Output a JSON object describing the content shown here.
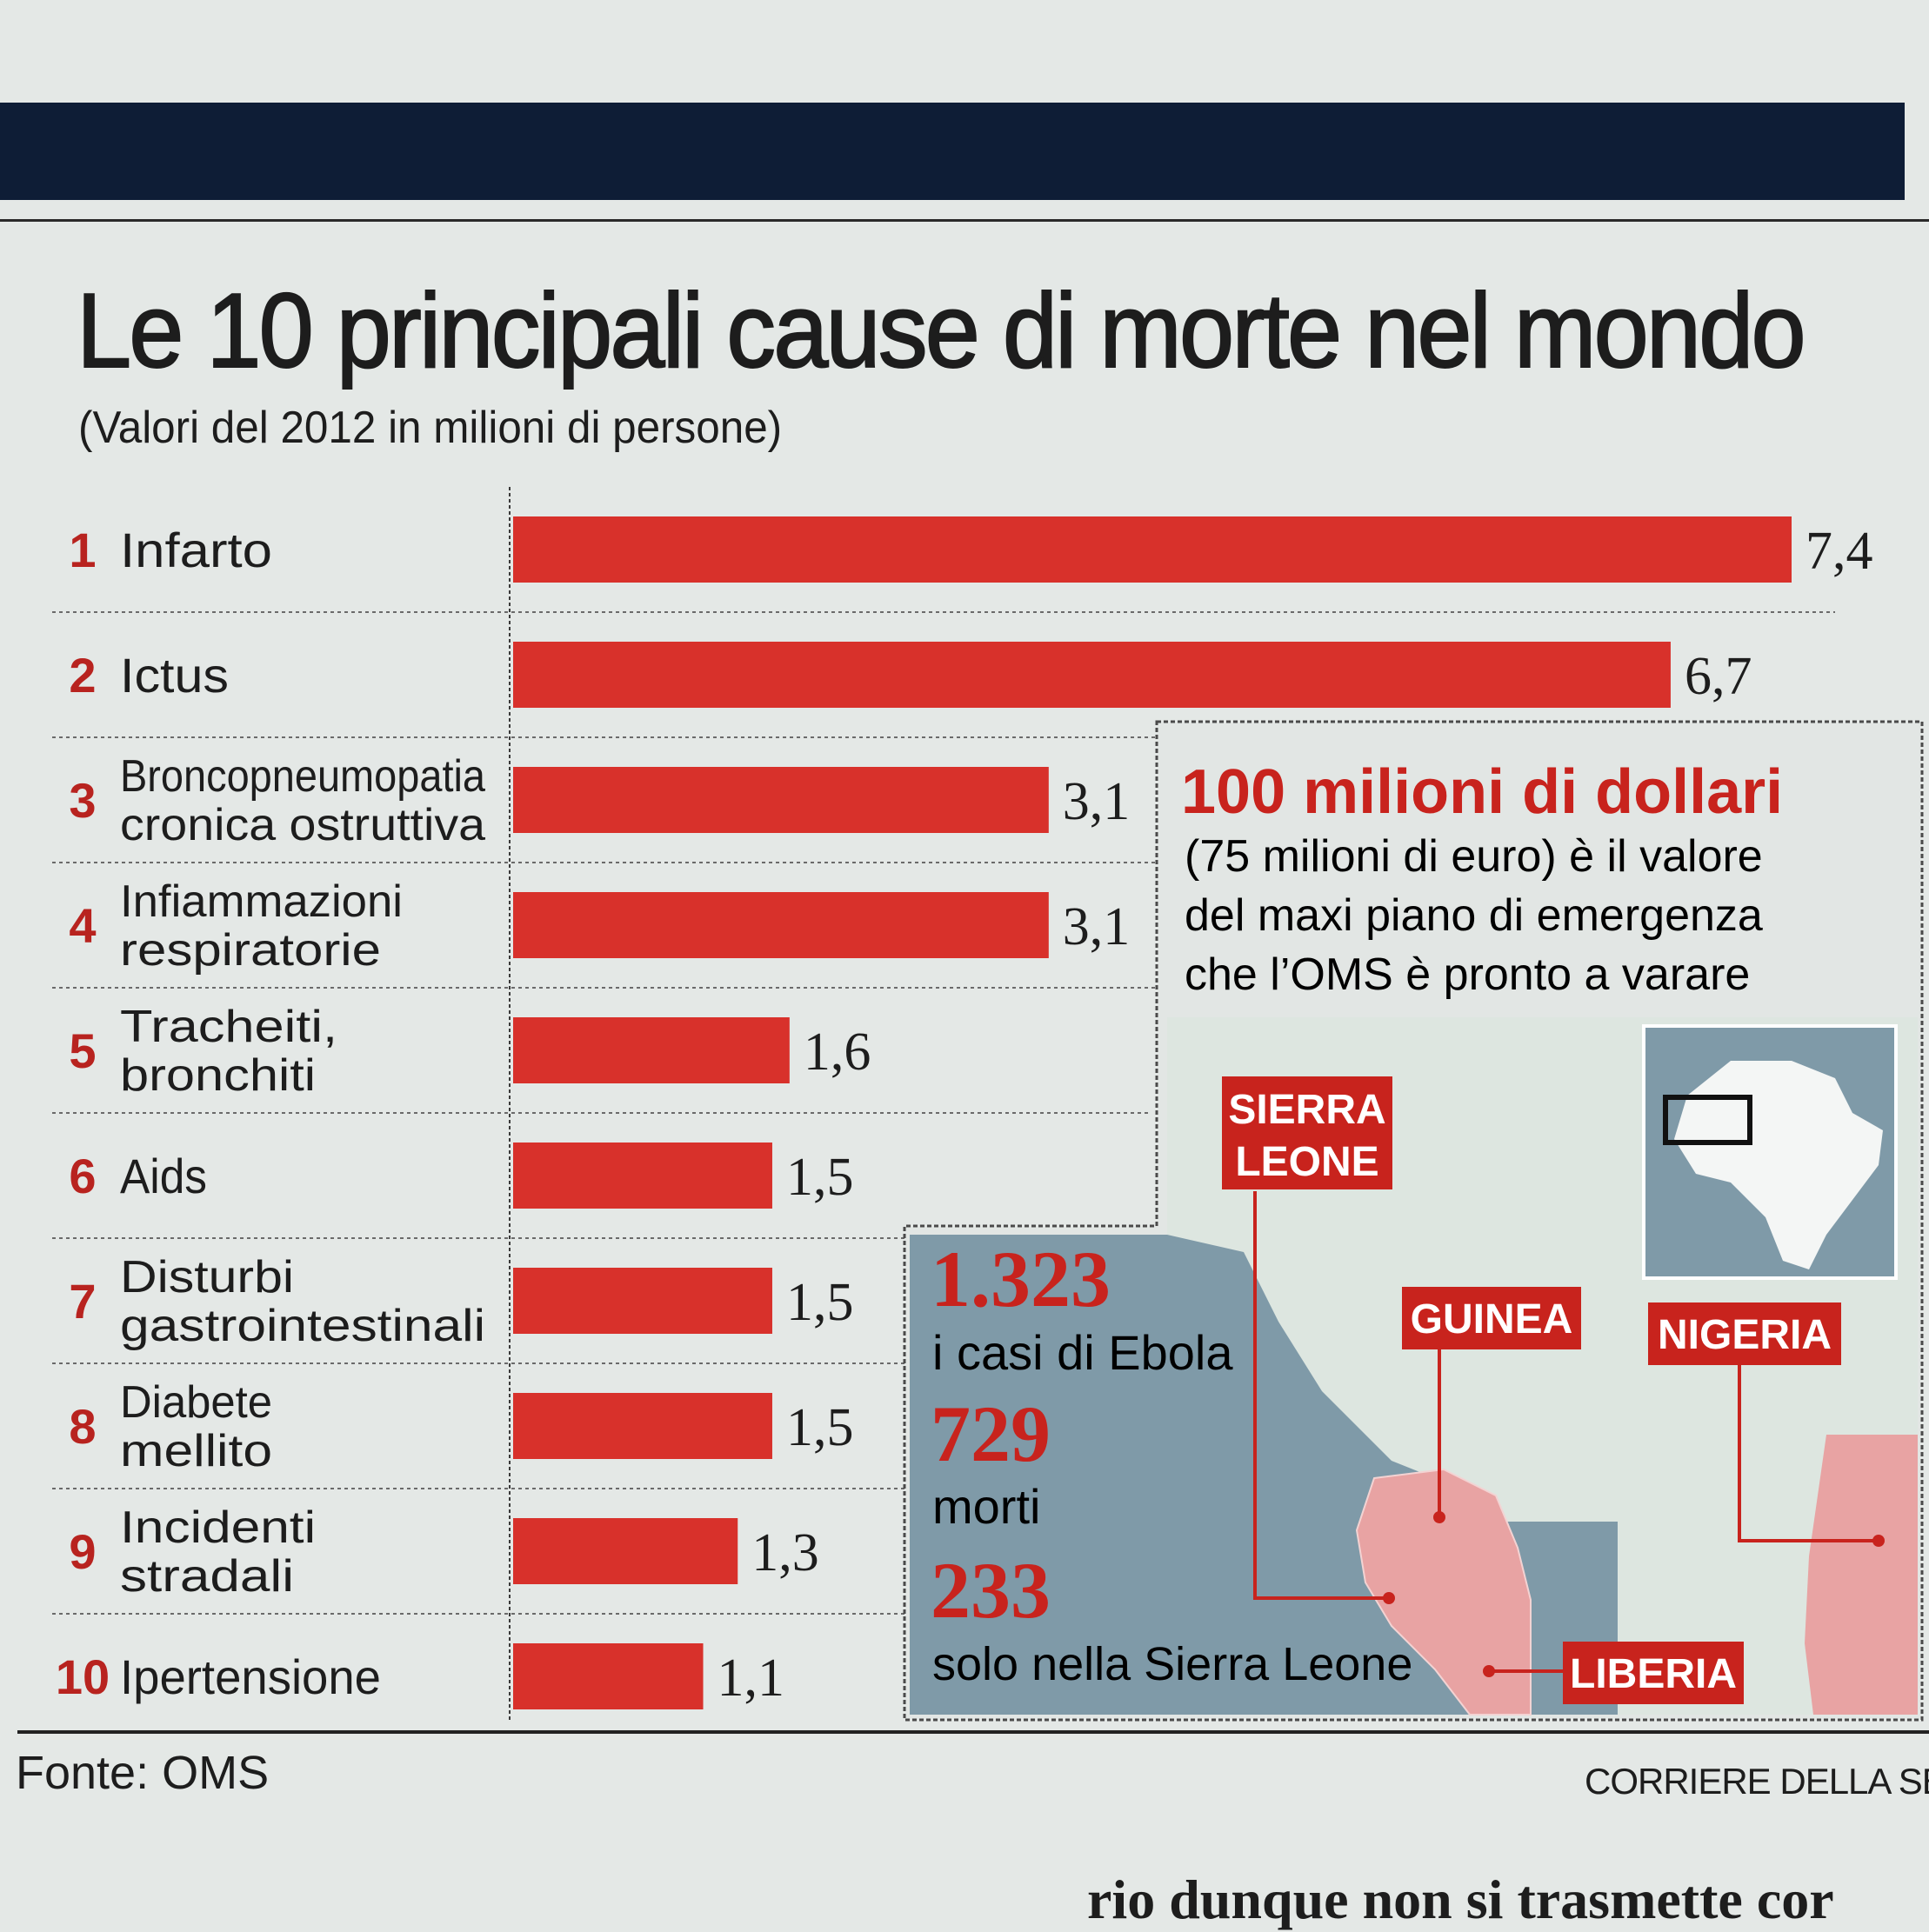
{
  "header": {
    "title": "Le 10 principali cause di morte nel mondo",
    "subtitle": "(Valori del 2012 in milioni di persone)"
  },
  "chart_data": {
    "type": "bar",
    "orientation": "horizontal",
    "categories": [
      {
        "rank": "1",
        "lines": [
          "Infarto"
        ]
      },
      {
        "rank": "2",
        "lines": [
          "Ictus"
        ]
      },
      {
        "rank": "3",
        "lines": [
          "Broncopneumopatia",
          "cronica ostruttiva"
        ]
      },
      {
        "rank": "4",
        "lines": [
          "Infiammazioni",
          "respiratorie"
        ]
      },
      {
        "rank": "5",
        "lines": [
          "Tracheiti,",
          "bronchiti"
        ]
      },
      {
        "rank": "6",
        "lines": [
          "Aids"
        ]
      },
      {
        "rank": "7",
        "lines": [
          "Disturbi",
          "gastrointestinali"
        ]
      },
      {
        "rank": "8",
        "lines": [
          "Diabete",
          "mellito"
        ]
      },
      {
        "rank": "9",
        "lines": [
          "Incidenti",
          "stradali"
        ]
      },
      {
        "rank": "10",
        "lines": [
          "Ipertensione"
        ]
      }
    ],
    "values": [
      7.4,
      6.7,
      3.1,
      3.1,
      1.6,
      1.5,
      1.5,
      1.5,
      1.3,
      1.1
    ],
    "value_labels": [
      "7,4",
      "6,7",
      "3,1",
      "3,1",
      "1,6",
      "1,5",
      "1,5",
      "1,5",
      "1,3",
      "1,1"
    ],
    "colors": {
      "bar": "#d8312b",
      "rank": "#b8231f"
    },
    "grid": false
  },
  "panel": {
    "headline": "100 milioni di dollari",
    "text_lines": [
      "(75 milioni di euro) è il valore",
      "del maxi piano di emergenza",
      "che l’OMS è pronto a varare"
    ],
    "stats": [
      {
        "number": "1.323",
        "label": "i casi di Ebola"
      },
      {
        "number": "729",
        "label": "morti"
      },
      {
        "number": "233",
        "label": "solo nella Sierra Leone"
      }
    ],
    "countries": [
      {
        "name": "SIERRA LEONE",
        "lines": [
          "SIERRA",
          "LEONE"
        ]
      },
      {
        "name": "GUINEA",
        "lines": [
          "GUINEA"
        ]
      },
      {
        "name": "NIGERIA",
        "lines": [
          "NIGERIA"
        ]
      },
      {
        "name": "LIBERIA",
        "lines": [
          "LIBERIA"
        ]
      }
    ],
    "colors": {
      "headline": "#c8231d",
      "map_land": "#dde6e0",
      "map_sea": "#7f9aa8",
      "affected": "#e8a3a3",
      "tag": "#c8231d"
    }
  },
  "footer": {
    "source": "Fonte: OMS",
    "credit": "CORRIERE DELLA SERA",
    "body_text": "rio dunque non si trasmette cor"
  }
}
